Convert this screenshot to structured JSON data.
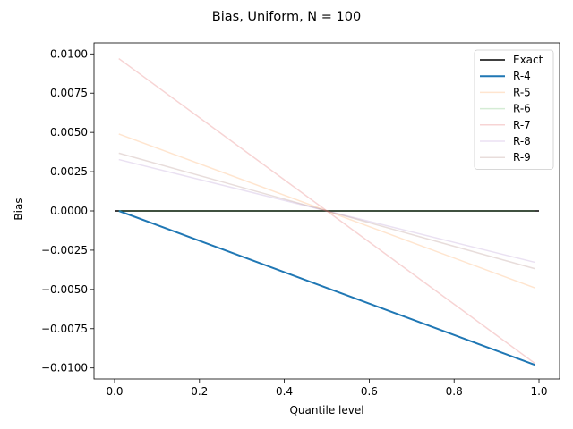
{
  "chart_data": {
    "type": "line",
    "title": "Bias, Uniform, N = 100",
    "xlabel": "Quantile level",
    "ylabel": "Bias",
    "xlim": [
      -0.0485,
      1.0485
    ],
    "ylim": [
      -0.0107,
      0.0107
    ],
    "xticks": [
      0.0,
      0.2,
      0.4,
      0.6,
      0.8,
      1.0
    ],
    "xtick_labels": [
      "0.0",
      "0.2",
      "0.4",
      "0.6",
      "0.8",
      "1.0"
    ],
    "yticks": [
      0.01,
      0.0075,
      0.005,
      0.0025,
      0.0,
      -0.0025,
      -0.005,
      -0.0075,
      -0.01
    ],
    "ytick_labels": [
      "0.0100",
      "0.0075",
      "0.0050",
      "0.0025",
      "0.0000",
      "−0.0025",
      "−0.0050",
      "−0.0075",
      "−0.0100"
    ],
    "grid": false,
    "legend_position": "top-right",
    "series": [
      {
        "name": "Exact",
        "color": "#000000",
        "opacity": 1.0,
        "width": 1.5,
        "x": [
          0.0,
          1.0
        ],
        "y": [
          0.0,
          0.0
        ]
      },
      {
        "name": "R-4",
        "color": "#1f77b4",
        "opacity": 1.0,
        "width": 2.0,
        "x": [
          0.01,
          0.99
        ],
        "y": [
          0.0,
          -0.0098
        ]
      },
      {
        "name": "R-5",
        "color": "#ff7f0e",
        "opacity": 0.2,
        "width": 1.5,
        "x": [
          0.01,
          0.99
        ],
        "y": [
          0.0049,
          -0.0049
        ]
      },
      {
        "name": "R-6",
        "color": "#2ca02c",
        "opacity": 0.2,
        "width": 1.5,
        "x": [
          0.01,
          0.99
        ],
        "y": [
          0.0,
          0.0
        ]
      },
      {
        "name": "R-7",
        "color": "#d62728",
        "opacity": 0.2,
        "width": 1.5,
        "x": [
          0.01,
          0.99
        ],
        "y": [
          0.0097,
          -0.0097
        ]
      },
      {
        "name": "R-8",
        "color": "#9467bd",
        "opacity": 0.2,
        "width": 1.5,
        "x": [
          0.01,
          0.99
        ],
        "y": [
          0.00327,
          -0.00327
        ]
      },
      {
        "name": "R-9",
        "color": "#8c564b",
        "opacity": 0.2,
        "width": 1.5,
        "x": [
          0.01,
          0.99
        ],
        "y": [
          0.00368,
          -0.00368
        ]
      }
    ]
  }
}
